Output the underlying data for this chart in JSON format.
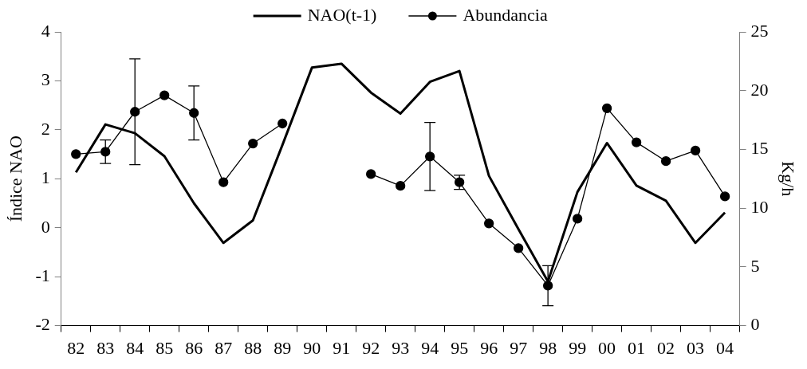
{
  "chart_data": {
    "type": "line",
    "categories": [
      "82",
      "83",
      "84",
      "85",
      "86",
      "87",
      "88",
      "89",
      "90",
      "91",
      "92",
      "93",
      "94",
      "95",
      "96",
      "97",
      "98",
      "99",
      "00",
      "01",
      "02",
      "03",
      "04"
    ],
    "ylabel": "Índice NAO",
    "y2label": "Kg/h",
    "ylim": [
      -2,
      4
    ],
    "yticks": [
      -2,
      -1,
      0,
      1,
      2,
      3,
      4
    ],
    "y2lim": [
      0,
      25
    ],
    "y2ticks": [
      0,
      5,
      10,
      15,
      20,
      25
    ],
    "legend": "top",
    "grid": false,
    "series": [
      {
        "name": "NAO(t-1)",
        "color": "#000000",
        "marker": "none",
        "values": [
          1.13,
          2.11,
          1.93,
          1.46,
          0.5,
          -0.31,
          0.15,
          1.69,
          3.27,
          3.35,
          2.76,
          2.33,
          2.98,
          3.2,
          1.06,
          -0.03,
          -1.1,
          0.73,
          1.73,
          0.86,
          0.55,
          -0.31,
          0.31
        ]
      },
      {
        "name": "Abundancia",
        "color": "#000000",
        "marker": "circle",
        "axis": "y2",
        "values": [
          14.6,
          14.8,
          18.2,
          19.6,
          18.1,
          12.2,
          15.5,
          17.2,
          null,
          null,
          12.9,
          11.9,
          14.4,
          12.2,
          8.7,
          6.6,
          3.4,
          9.1,
          18.5,
          15.6,
          14.0,
          14.9,
          11.0
        ],
        "errors": [
          null,
          1.0,
          4.5,
          null,
          2.3,
          null,
          null,
          null,
          null,
          null,
          null,
          null,
          2.9,
          0.6,
          null,
          null,
          1.7,
          null,
          null,
          null,
          null,
          null,
          null
        ]
      }
    ]
  }
}
